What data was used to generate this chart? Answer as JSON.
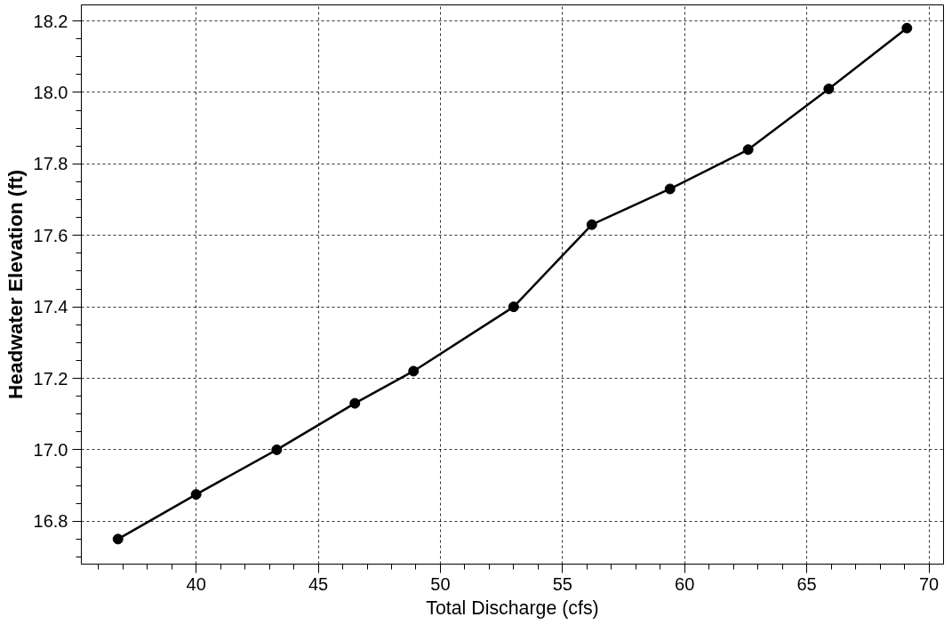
{
  "chart_data": {
    "type": "line",
    "xlabel": "Total Discharge (cfs)",
    "ylabel": "Headwater Elevation (ft)",
    "x": [
      36.8,
      40.0,
      43.3,
      46.5,
      48.9,
      53.0,
      56.2,
      59.4,
      62.6,
      65.9,
      69.1
    ],
    "series": [
      {
        "color": "#000000",
        "values": [
          16.75,
          16.875,
          17.0,
          17.13,
          17.22,
          17.4,
          17.63,
          17.73,
          17.84,
          18.01,
          18.18
        ]
      }
    ],
    "xlim": [
      35.3,
      70.6
    ],
    "ylim": [
      16.68,
      18.245
    ],
    "xticks": [
      40,
      45,
      50,
      55,
      60,
      65,
      70
    ],
    "yticks": [
      {
        "value": 16.8,
        "label": "16.8"
      },
      {
        "value": 17.0,
        "label": "17.0"
      },
      {
        "value": 17.2,
        "label": "17.2"
      },
      {
        "value": 17.4,
        "label": "17.4"
      },
      {
        "value": 17.6,
        "label": "17.6"
      },
      {
        "value": 17.8,
        "label": "17.8"
      },
      {
        "value": 18.0,
        "label": "18.0"
      },
      {
        "value": 18.2,
        "label": "18.2"
      }
    ],
    "grid": true,
    "marker": "circle",
    "line_style": "solid"
  }
}
